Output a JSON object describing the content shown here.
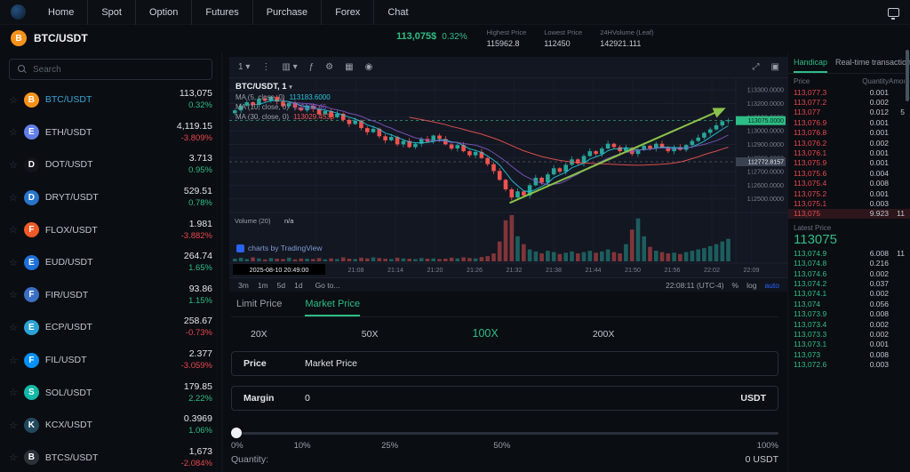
{
  "nav": {
    "items": [
      "Home",
      "Spot",
      "Option",
      "Futures",
      "Purchase",
      "Forex",
      "Chat"
    ]
  },
  "header": {
    "pair": "BTC/USDT",
    "icon_glyph": "B",
    "price": "113,075$",
    "change": "0.32%",
    "stats": [
      {
        "label": "Highest Price",
        "value": "115962.8"
      },
      {
        "label": "Lowest Price",
        "value": "112450"
      },
      {
        "label": "24HVolume  (Leaf)",
        "value": "142921.111"
      }
    ]
  },
  "sidebar": {
    "search_placeholder": "Search",
    "pairs": [
      {
        "name": "BTC/USDT",
        "price": "113,075",
        "change": "0.32%",
        "dir": "up",
        "color": "#f7931a",
        "glyph": "B",
        "selected": true
      },
      {
        "name": "ETH/USDT",
        "price": "4,119.15",
        "change": "-3.809%",
        "dir": "down",
        "color": "#627eea",
        "glyph": "E",
        "selected": false
      },
      {
        "name": "DOT/USDT",
        "price": "3.713",
        "change": "0.95%",
        "dir": "up",
        "color": "#14131c",
        "glyph": "D",
        "selected": false
      },
      {
        "name": "DRYT/USDT",
        "price": "529.51",
        "change": "0.78%",
        "dir": "up",
        "color": "#2775ca",
        "glyph": "D",
        "selected": false
      },
      {
        "name": "FLOX/USDT",
        "price": "1.981",
        "change": "-3.882%",
        "dir": "down",
        "color": "#f05a28",
        "glyph": "F",
        "selected": false
      },
      {
        "name": "EUD/USDT",
        "price": "264.74",
        "change": "1.65%",
        "dir": "up",
        "color": "#1e6fd9",
        "glyph": "E",
        "selected": false
      },
      {
        "name": "FIR/USDT",
        "price": "93.86",
        "change": "1.15%",
        "dir": "up",
        "color": "#3b6fc4",
        "glyph": "F",
        "selected": false
      },
      {
        "name": "ECP/USDT",
        "price": "258.67",
        "change": "-0.73%",
        "dir": "down",
        "color": "#2aa2d6",
        "glyph": "E",
        "selected": false
      },
      {
        "name": "FIL/USDT",
        "price": "2.377",
        "change": "-3.059%",
        "dir": "down",
        "color": "#0090ff",
        "glyph": "F",
        "selected": false
      },
      {
        "name": "SOL/USDT",
        "price": "179.85",
        "change": "2.22%",
        "dir": "up",
        "color": "#14b8a6",
        "glyph": "S",
        "selected": false
      },
      {
        "name": "KCX/USDT",
        "price": "0.3969",
        "change": "1.06%",
        "dir": "up",
        "color": "#23495e",
        "glyph": "K",
        "selected": false
      },
      {
        "name": "BTCS/USDT",
        "price": "1,673",
        "change": "-2.084%",
        "dir": "down",
        "color": "#2b3139",
        "glyph": "B",
        "selected": false
      }
    ]
  },
  "chart": {
    "title": "BTC/USDT, 1",
    "watermark": "charts by TradingView",
    "toolbar": {
      "left": [
        {
          "name": "interval-dropdown",
          "glyph": "1 ▾"
        },
        {
          "name": "menu-icon",
          "glyph": "⋮"
        },
        {
          "name": "candlestick-type-icon",
          "glyph": "▥ ▾"
        },
        {
          "name": "indicators-icon",
          "glyph": "ƒ"
        },
        {
          "name": "settings-icon",
          "glyph": "⚙"
        },
        {
          "name": "grid-icon",
          "glyph": "▦"
        },
        {
          "name": "camera-icon",
          "glyph": "◉"
        }
      ],
      "right": [
        {
          "name": "fullscreen-icon",
          "glyph": "⤢"
        },
        {
          "name": "panels-icon",
          "glyph": "▣"
        }
      ]
    },
    "legend": [
      {
        "label": "MA (5, close, 0)",
        "value": "113183.6000",
        "color": "#26c6da"
      },
      {
        "label": "MA (10, close, 0)",
        "value": "113130.46",
        "color": "#7e57c2"
      },
      {
        "label": "MA (30, close, 0)",
        "value": "113029.4533",
        "color": "#ef5350"
      }
    ],
    "volume_label": "Volume (20)",
    "volume_value": "n/a",
    "footer": {
      "timeframes": [
        "3m",
        "1m",
        "5d",
        "1d"
      ],
      "goto": "Go to...",
      "time": "22:08:11 (UTC-4)",
      "options": [
        "%",
        "log",
        "auto"
      ]
    },
    "chart_data": {
      "type": "candlestick",
      "current_price": 113075,
      "current_price_label": "113075.0000",
      "marked_price": 112772.8157,
      "tooltip_date": "2025-08-10 20:49:00",
      "price_gridlines": [
        113300,
        113200,
        113100,
        113000,
        112900,
        112800,
        112700,
        112600,
        112500
      ],
      "time_labels": [
        "21:02",
        "21:08",
        "21:14",
        "21:20",
        "21:26",
        "21:32",
        "21:38",
        "21:44",
        "21:50",
        "21:56",
        "22:02",
        "22:09"
      ],
      "closes": [
        113150,
        113185,
        113210,
        113190,
        113235,
        113220,
        113250,
        113215,
        113180,
        113205,
        113170,
        113150,
        113185,
        113160,
        113120,
        113145,
        113100,
        113125,
        113080,
        113050,
        113075,
        113020,
        112990,
        113015,
        112960,
        112930,
        112955,
        112900,
        112925,
        112880,
        112905,
        112940,
        112920,
        112965,
        112940,
        112900,
        112870,
        112895,
        112850,
        112820,
        112845,
        112800,
        112755,
        112705,
        112640,
        112570,
        112510,
        112555,
        112525,
        112600,
        112655,
        112620,
        112680,
        112725,
        112700,
        112750,
        112790,
        112760,
        112815,
        112850,
        112830,
        112870,
        112905,
        112880,
        112850,
        112875,
        112830,
        112860,
        112890,
        112870,
        112905,
        112880,
        112850,
        112880,
        112860,
        112895,
        112925,
        112950,
        112985,
        113010,
        113040,
        113070,
        113078
      ],
      "volumes": [
        40,
        55,
        35,
        60,
        45,
        30,
        50,
        40,
        35,
        55,
        30,
        45,
        40,
        35,
        50,
        30,
        45,
        35,
        60,
        40,
        35,
        55,
        45,
        60,
        50,
        40,
        35,
        55,
        45,
        40,
        35,
        50,
        40,
        45,
        35,
        40,
        55,
        45,
        60,
        50,
        45,
        65,
        80,
        120,
        300,
        620,
        700,
        380,
        260,
        180,
        150,
        120,
        160,
        140,
        110,
        130,
        150,
        120,
        140,
        160,
        130,
        150,
        180,
        140,
        120,
        260,
        480,
        650,
        380,
        220,
        160,
        140,
        120,
        130,
        110,
        140,
        160,
        180,
        200,
        230,
        260,
        300,
        340
      ]
    }
  },
  "orderform": {
    "tabs": [
      {
        "label": "Limit Price",
        "active": false
      },
      {
        "label": "Market Price",
        "active": true
      }
    ],
    "leverage": {
      "options": [
        "20X",
        "50X",
        "100X",
        "200X"
      ],
      "selected": "100X"
    },
    "price_row": {
      "label": "Price",
      "value": "Market Price"
    },
    "margin_row": {
      "label": "Margin",
      "value": "0",
      "unit": "USDT"
    },
    "slider_labels": [
      "0%",
      "10%",
      "25%",
      "50%",
      "100%"
    ],
    "quantity_label": "Quantity:",
    "quantity_value": "0 USDT"
  },
  "orderbook": {
    "tabs": [
      {
        "label": "Handicap",
        "active": true
      },
      {
        "label": "Real-time transaction",
        "active": false
      }
    ],
    "columns": [
      "Price",
      "Quantity",
      "Amount"
    ],
    "asks": [
      [
        "113,077.3",
        "0.001",
        ""
      ],
      [
        "113,077.2",
        "0.002",
        ""
      ],
      [
        "113,077",
        "0.012",
        "5"
      ],
      [
        "113,076.9",
        "0.001",
        ""
      ],
      [
        "113,076.8",
        "0.001",
        ""
      ],
      [
        "113,076.2",
        "0.002",
        ""
      ],
      [
        "113,076.1",
        "0.001",
        ""
      ],
      [
        "113,075.9",
        "0.001",
        ""
      ],
      [
        "113,075.6",
        "0.004",
        ""
      ],
      [
        "113,075.4",
        "0.008",
        ""
      ],
      [
        "113,075.2",
        "0.001",
        ""
      ],
      [
        "113,075.1",
        "0.003",
        ""
      ],
      [
        "113,075",
        "9.923",
        "11"
      ]
    ],
    "highlight_ask_index": 12,
    "latest_price_label": "Latest Price",
    "latest_price": "113075",
    "bids": [
      [
        "113,074.9",
        "6.008",
        "11"
      ],
      [
        "113,074.8",
        "0.216",
        ""
      ],
      [
        "113,074.6",
        "0.002",
        ""
      ],
      [
        "113,074.2",
        "0.037",
        ""
      ],
      [
        "113,074.1",
        "0.002",
        ""
      ],
      [
        "113,074",
        "0.056",
        ""
      ],
      [
        "113,073.9",
        "0.008",
        ""
      ],
      [
        "113,073.4",
        "0.002",
        ""
      ],
      [
        "113,073.3",
        "0.002",
        ""
      ],
      [
        "113,073.1",
        "0.001",
        ""
      ],
      [
        "113,073",
        "0.008",
        ""
      ],
      [
        "113,072.6",
        "0.003",
        ""
      ]
    ]
  }
}
